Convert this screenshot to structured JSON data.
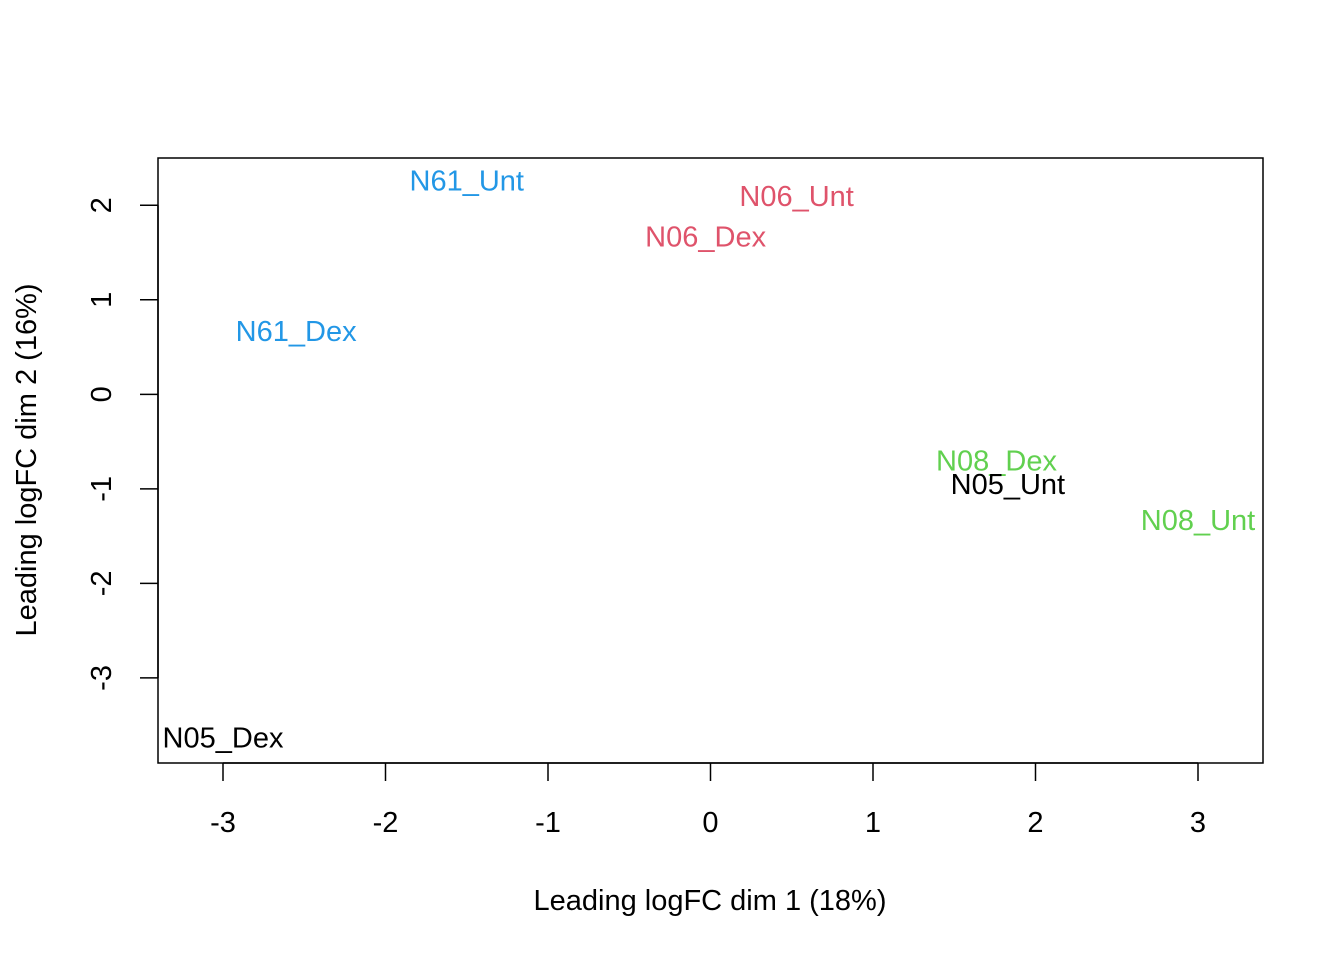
{
  "chart_data": {
    "type": "scatter",
    "title": "",
    "xlabel": "Leading logFC dim 1 (18%)",
    "ylabel": "Leading logFC dim 2 (16%)",
    "xlim": [
      -3.4,
      3.4
    ],
    "ylim": [
      -3.9,
      2.5
    ],
    "xticks": [
      -3,
      -2,
      -1,
      0,
      1,
      2,
      3
    ],
    "xtick_labels": [
      "-3",
      "-2",
      "-1",
      "0",
      "1",
      "2",
      "3"
    ],
    "yticks": [
      -3,
      -2,
      -1,
      0,
      1,
      2
    ],
    "ytick_labels": [
      "-3",
      "-2",
      "-1",
      "0",
      "1",
      "2"
    ],
    "grid": false,
    "legend": "none",
    "points": [
      {
        "label": "N61_Unt",
        "x": -1.5,
        "y": 2.25,
        "color": "#2297E6"
      },
      {
        "label": "N06_Unt",
        "x": 0.53,
        "y": 2.09,
        "color": "#DF536B"
      },
      {
        "label": "N06_Dex",
        "x": -0.03,
        "y": 1.66,
        "color": "#DF536B"
      },
      {
        "label": "N61_Dex",
        "x": -2.55,
        "y": 0.66,
        "color": "#2297E6"
      },
      {
        "label": "N08_Dex",
        "x": 1.76,
        "y": -0.71,
        "color": "#61D04F"
      },
      {
        "label": "N05_Unt",
        "x": 1.83,
        "y": -0.96,
        "color": "#000000"
      },
      {
        "label": "N08_Unt",
        "x": 3.0,
        "y": -1.34,
        "color": "#61D04F"
      },
      {
        "label": "N05_Dex",
        "x": -3.0,
        "y": -3.64,
        "color": "#000000"
      }
    ]
  }
}
